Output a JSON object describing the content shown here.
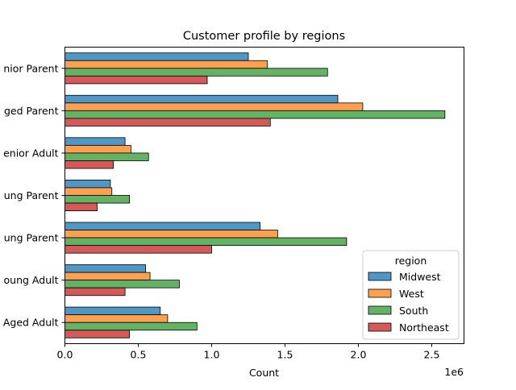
{
  "chart_data": {
    "type": "bar",
    "orientation": "horizontal",
    "title": "Customer profile by regions",
    "xlabel": "Count",
    "ylabel": "",
    "x_scale_label": "1e6",
    "xlim": [
      0,
      2.72
    ],
    "x_ticks": [
      0.0,
      0.5,
      1.0,
      1.5,
      2.0,
      2.5
    ],
    "x_tick_labels": [
      "0.0",
      "0.5",
      "1.0",
      "1.5",
      "2.0",
      "2.5"
    ],
    "categories": [
      "nior Parent",
      "ged Parent",
      "enior Adult",
      "ung Parent",
      "ung Parent",
      "oung Adult",
      "Aged Adult"
    ],
    "legend": {
      "title": "region",
      "placement": "lower-right"
    },
    "series": [
      {
        "name": "Midwest",
        "color": "#4f98c6",
        "values": [
          1.25,
          1.86,
          0.41,
          0.31,
          1.33,
          0.55,
          0.65
        ]
      },
      {
        "name": "West",
        "color": "#fea050",
        "values": [
          1.38,
          2.03,
          0.45,
          0.32,
          1.45,
          0.58,
          0.7
        ]
      },
      {
        "name": "South",
        "color": "#64b264",
        "values": [
          1.79,
          2.59,
          0.57,
          0.44,
          1.92,
          0.78,
          0.9
        ]
      },
      {
        "name": "Northeast",
        "color": "#d45a5a",
        "values": [
          0.97,
          1.4,
          0.33,
          0.22,
          1.0,
          0.41,
          0.44
        ]
      }
    ]
  }
}
